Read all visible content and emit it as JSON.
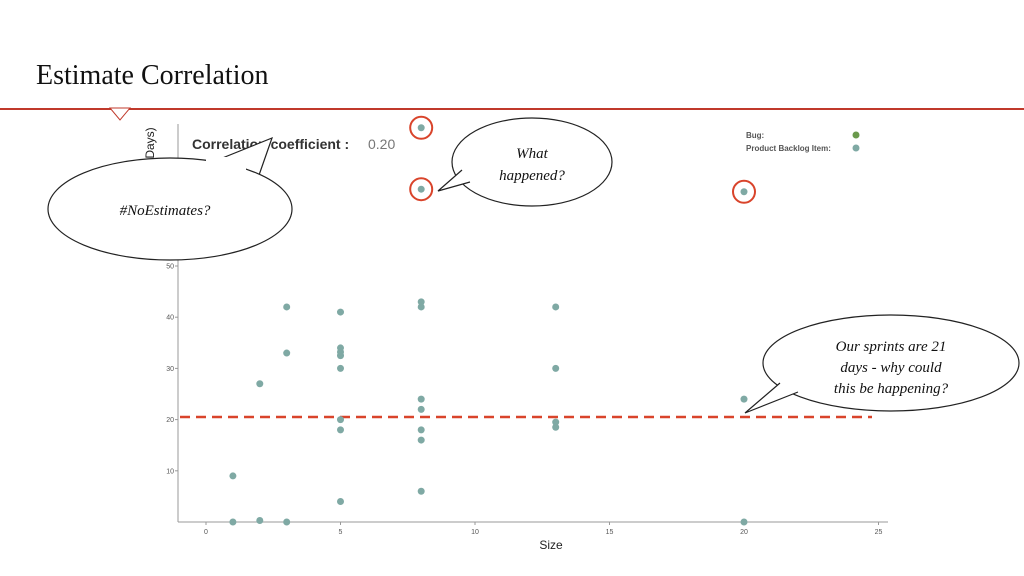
{
  "slide": {
    "title": "Estimate Correlation",
    "accent_color": "#c0392b"
  },
  "chart_data": {
    "type": "scatter",
    "xlabel": "Size",
    "ylabel": "(Days)",
    "xlim": [
      0,
      25
    ],
    "ylim": [
      0,
      80
    ],
    "xticks": [
      0,
      5,
      10,
      15,
      20,
      25
    ],
    "yticks": [
      10,
      20,
      30,
      40,
      50
    ],
    "correlation_label": "Correlation coefficient :",
    "correlation_value": "0.20",
    "legend": [
      {
        "name": "Bug:",
        "color": "#6a9a4c"
      },
      {
        "name": "Product Backlog Item:",
        "color": "#7fa9a4"
      }
    ],
    "series": [
      {
        "name": "Product Backlog Item:",
        "color": "#7fa9a4",
        "points": [
          [
            1,
            0
          ],
          [
            1,
            9
          ],
          [
            2,
            0.3
          ],
          [
            2,
            27
          ],
          [
            3,
            0
          ],
          [
            3,
            33
          ],
          [
            3,
            42
          ],
          [
            5,
            4
          ],
          [
            5,
            18
          ],
          [
            5,
            20
          ],
          [
            5,
            30
          ],
          [
            5,
            32.5
          ],
          [
            5,
            33.2
          ],
          [
            5,
            34
          ],
          [
            5,
            41
          ],
          [
            8,
            6
          ],
          [
            8,
            16
          ],
          [
            8,
            18
          ],
          [
            8,
            22
          ],
          [
            8,
            24
          ],
          [
            8,
            42
          ],
          [
            8,
            43
          ],
          [
            8,
            77
          ],
          [
            8,
            65
          ],
          [
            13,
            18.5
          ],
          [
            13,
            19.5
          ],
          [
            13,
            30
          ],
          [
            13,
            42
          ],
          [
            20,
            0
          ],
          [
            20,
            24
          ],
          [
            20,
            64.5
          ]
        ]
      }
    ],
    "reference_line": {
      "y": 20.5,
      "color": "#d9442b"
    },
    "highlighted_points": [
      [
        8,
        77
      ],
      [
        8,
        65
      ],
      [
        20,
        64.5
      ]
    ],
    "annotations": [
      {
        "text": "#NoEstimates?"
      },
      {
        "text_lines": [
          "What",
          "happened?"
        ]
      },
      {
        "text_lines": [
          "Our sprints are 21",
          "days - why could",
          "this be happening?"
        ]
      }
    ]
  }
}
